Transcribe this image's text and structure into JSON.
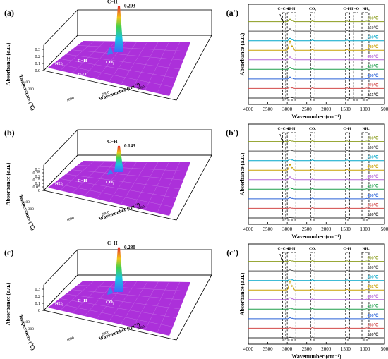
{
  "chart_data": [
    {
      "panel": "(a)",
      "type": "area",
      "view": "3d-waterfall",
      "peak_label": "C−H",
      "peak_value": "0.293",
      "peak_relative": 0.293,
      "zlabel": "Absorbance (a.u.)",
      "zticks": [
        "0.3",
        "0.2",
        "0.1",
        "0.0"
      ],
      "xlabel": "Wavenumber (cm⁻¹)",
      "xticks": [
        "1000",
        "2000",
        "3000"
      ],
      "ylabel": "Temperature (℃)",
      "yticks": [
        "300",
        "400"
      ],
      "annotations": [
        "NH₃",
        "C−H",
        "CO₂",
        "H₂O"
      ],
      "surface_color": "#a319d6"
    },
    {
      "panel": "(b)",
      "type": "area",
      "view": "3d-waterfall",
      "peak_label": "C−H",
      "peak_value": "0.143",
      "peak_relative": 0.143,
      "zlabel": "Absorbance (a.u.)",
      "zticks": [
        "0.3",
        "0.25",
        "0.2",
        "0.15",
        "0.1",
        "0.05",
        "0"
      ],
      "xlabel": "Wavenumber (cm⁻¹)",
      "xticks": [
        "1000",
        "2000",
        "3000"
      ],
      "ylabel": "Temperature (℃)",
      "yticks": [
        "300",
        "400"
      ],
      "annotations": [
        "NH₃",
        "C−H",
        "CO₂"
      ],
      "surface_color": "#a319d6"
    },
    {
      "panel": "(c)",
      "type": "area",
      "view": "3d-waterfall",
      "peak_label": "C−H",
      "peak_value": "0.280",
      "peak_relative": 0.28,
      "zlabel": "Absorbance (a.u.)",
      "zticks": [
        "0.3",
        "0.2",
        "0.1",
        "0"
      ],
      "xlabel": "Wavenumber (cm⁻¹)",
      "xticks": [
        "1000",
        "2000",
        "3000"
      ],
      "ylabel": "Temperature (℃)",
      "yticks": [
        "300",
        "400"
      ],
      "annotations": [
        "NH₃",
        "C−H",
        "CO₂"
      ],
      "surface_color": "#a319d6"
    },
    {
      "panel": "(a′)",
      "type": "line",
      "xlabel": "Wavenumber (cm⁻¹)",
      "ylabel": "Absorbance (a.u.)",
      "xlim": [
        4000,
        500
      ],
      "xticks": [
        4000,
        3500,
        3000,
        2500,
        2000,
        1500,
        1000,
        500
      ],
      "band_labels": [
        {
          "text": "C=C−H",
          "x": 3080
        },
        {
          "text": "C−H",
          "x": 2900
        },
        {
          "text": "CO₂",
          "x": 2350
        },
        {
          "text": "C−H",
          "x": 1460
        },
        {
          "text": "P−O",
          "x": 1250
        },
        {
          "text": "NH₃",
          "x": 980
        }
      ],
      "band_regions": [
        [
          3120,
          3040
        ],
        [
          3000,
          2780
        ],
        [
          2400,
          2290
        ],
        [
          1500,
          1400
        ],
        [
          1300,
          1180
        ],
        [
          1080,
          900
        ]
      ],
      "series": [
        {
          "name": "600℃",
          "color": "#8b9c1c",
          "peak": 0.25
        },
        {
          "name": "550℃",
          "color": "#555555",
          "peak": 0.25
        },
        {
          "name": "500℃",
          "color": "#00a6c8",
          "peak": 0.25
        },
        {
          "name": "480℃",
          "color": "#c8a000",
          "peak": 1.0
        },
        {
          "name": "450℃",
          "color": "#b565d8",
          "peak": 0.3
        },
        {
          "name": "420℃",
          "color": "#1e9e4a",
          "peak": 0.2
        },
        {
          "name": "400℃",
          "color": "#2a62d8",
          "peak": 0.2
        },
        {
          "name": "370℃",
          "color": "#d24a4a",
          "peak": 0.15
        },
        {
          "name": "355℃",
          "color": "#333333",
          "peak": 0.1
        }
      ]
    },
    {
      "panel": "(b′)",
      "type": "line",
      "xlabel": "Wavenumber (cm⁻¹)",
      "ylabel": "Absorbance (a.u.)",
      "xlim": [
        4000,
        500
      ],
      "xticks": [
        4000,
        3500,
        3000,
        2500,
        2000,
        1500,
        1000,
        500
      ],
      "band_labels": [
        {
          "text": "C=C−H",
          "x": 3080
        },
        {
          "text": "C−H",
          "x": 2900
        },
        {
          "text": "CO₂",
          "x": 2350
        },
        {
          "text": "C−H",
          "x": 1460
        },
        {
          "text": "NH₃",
          "x": 980
        }
      ],
      "band_regions": [
        [
          3120,
          3040
        ],
        [
          3000,
          2780
        ],
        [
          2400,
          2290
        ],
        [
          1500,
          1400
        ],
        [
          1080,
          900
        ]
      ],
      "series": [
        {
          "name": "600℃",
          "color": "#8b9c1c",
          "peak": 0.1
        },
        {
          "name": "550℃",
          "color": "#555555",
          "peak": 0.1
        },
        {
          "name": "500℃",
          "color": "#00a6c8",
          "peak": 0.15
        },
        {
          "name": "465℃",
          "color": "#c8a000",
          "peak": 0.6
        },
        {
          "name": "450℃",
          "color": "#b565d8",
          "peak": 0.3
        },
        {
          "name": "420℃",
          "color": "#1e9e4a",
          "peak": 0.15
        },
        {
          "name": "400℃",
          "color": "#2a62d8",
          "peak": 0.1
        },
        {
          "name": "350℃",
          "color": "#d24a4a",
          "peak": 0.05
        },
        {
          "name": "330℃",
          "color": "#333333",
          "peak": 0.05
        }
      ]
    },
    {
      "panel": "(c′)",
      "type": "line",
      "xlabel": "Wavenumber (cm⁻¹)",
      "ylabel": "Absorbance (a.u.)",
      "xlim": [
        4000,
        500
      ],
      "xticks": [
        4000,
        3500,
        3000,
        2500,
        2000,
        1500,
        1000,
        500
      ],
      "band_labels": [
        {
          "text": "C=C−H",
          "x": 3080
        },
        {
          "text": "C−H",
          "x": 2900
        },
        {
          "text": "CO₂",
          "x": 2350
        },
        {
          "text": "C−H",
          "x": 1460
        },
        {
          "text": "NH₃",
          "x": 980
        }
      ],
      "band_regions": [
        [
          3120,
          3040
        ],
        [
          3000,
          2780
        ],
        [
          2400,
          2290
        ],
        [
          1500,
          1400
        ],
        [
          1080,
          900
        ]
      ],
      "series": [
        {
          "name": "600℃",
          "color": "#8b9c1c",
          "peak": 0.1
        },
        {
          "name": "550℃",
          "color": "#555555",
          "peak": 0.1
        },
        {
          "name": "500℃",
          "color": "#00a6c8",
          "peak": 0.15
        },
        {
          "name": "482℃",
          "color": "#c8a000",
          "peak": 1.0
        },
        {
          "name": "450℃",
          "color": "#b565d8",
          "peak": 0.2
        },
        {
          "name": "420℃",
          "color": "#1e9e4a",
          "peak": 0.1
        },
        {
          "name": "400℃",
          "color": "#2a62d8",
          "peak": 0.1
        },
        {
          "name": "350℃",
          "color": "#d24a4a",
          "peak": 0.05
        },
        {
          "name": "330℃",
          "color": "#333333",
          "peak": 0.05
        }
      ]
    }
  ]
}
